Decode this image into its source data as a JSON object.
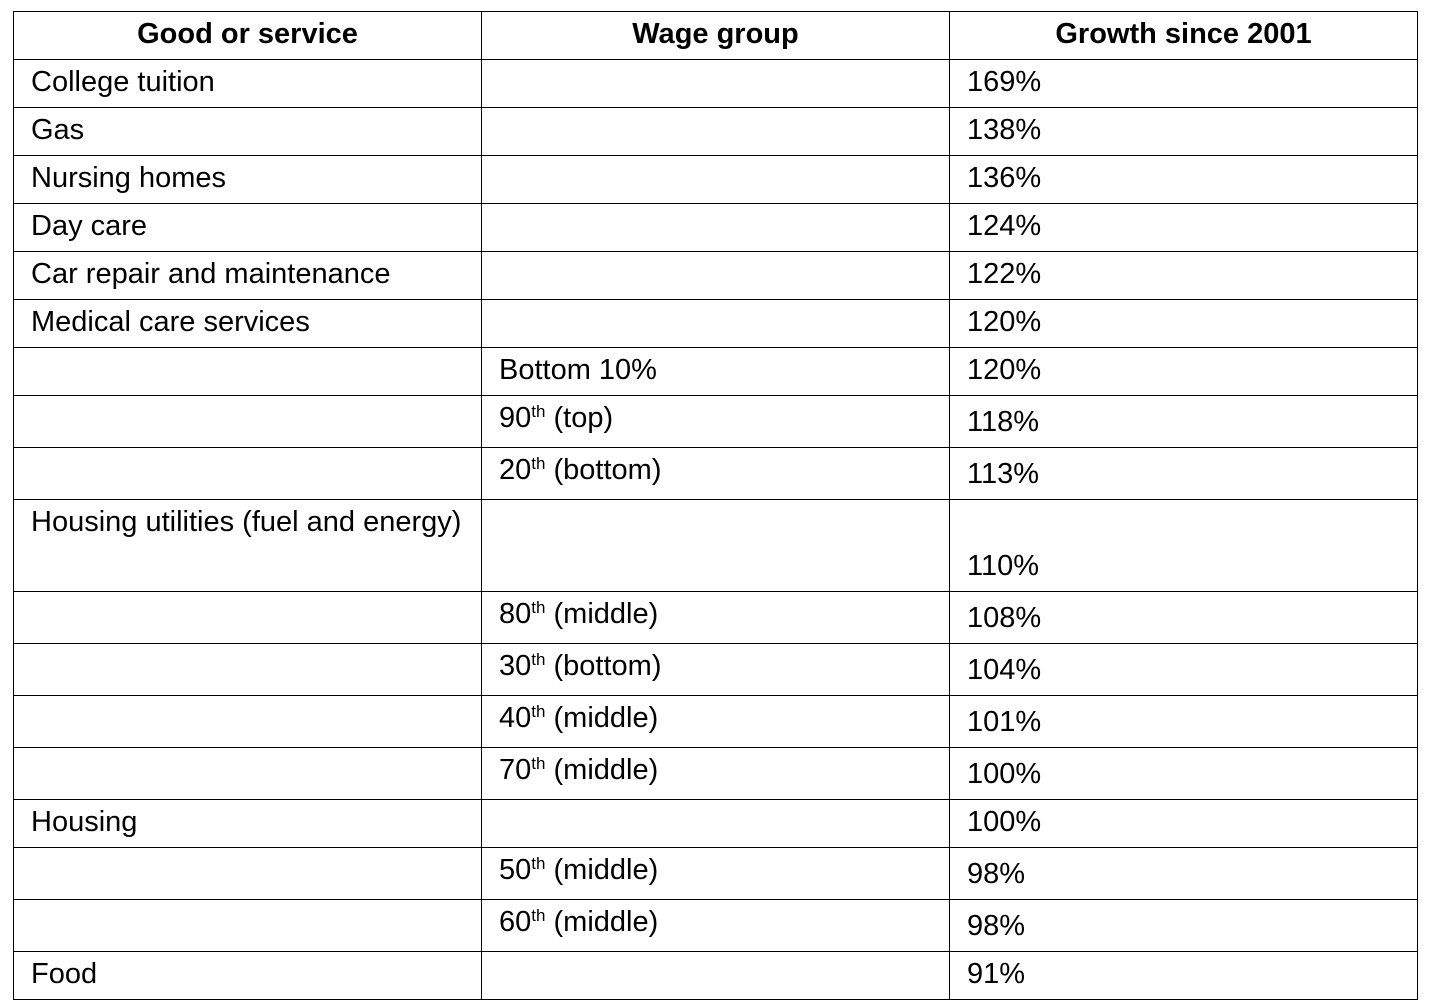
{
  "table": {
    "header": [
      "Good or service",
      "Wage group",
      "Growth since 2001"
    ],
    "rows": [
      [
        "College tuition",
        null,
        "169%"
      ],
      [
        "Gas",
        null,
        "138%"
      ],
      [
        "Nursing homes",
        null,
        "136%"
      ],
      [
        "Day care",
        null,
        "124%"
      ],
      [
        "Car repair and maintenance",
        null,
        "122%"
      ],
      [
        "Medical care services",
        null,
        "120%"
      ],
      [
        null,
        "Bottom 10%",
        "120%"
      ],
      [
        null,
        {
          "base": "90",
          "sup": "th",
          "text": "(top)"
        },
        "118%"
      ],
      [
        null,
        {
          "base": "20",
          "sup": "th",
          "text": "(bottom)"
        },
        "113%"
      ],
      [
        "Housing utilities (fuel and energy)",
        null,
        "110%"
      ],
      [
        null,
        {
          "base": "80",
          "sup": "th",
          "text": "(middle)"
        },
        "108%"
      ],
      [
        null,
        {
          "base": "30",
          "sup": "th",
          "text": "(bottom)"
        },
        "104%"
      ],
      [
        null,
        {
          "base": "40",
          "sup": "th",
          "text": "(middle)"
        },
        "101%"
      ],
      [
        null,
        {
          "base": "70",
          "sup": "th",
          "text": "(middle)"
        },
        "100%"
      ],
      [
        "Housing",
        null,
        "100%"
      ],
      [
        null,
        {
          "base": "50",
          "sup": "th",
          "text": "(middle)"
        },
        "98%"
      ],
      [
        null,
        {
          "base": "60",
          "sup": "th",
          "text": "(middle)"
        },
        "98%"
      ],
      [
        "Food",
        null,
        "91%"
      ]
    ]
  }
}
